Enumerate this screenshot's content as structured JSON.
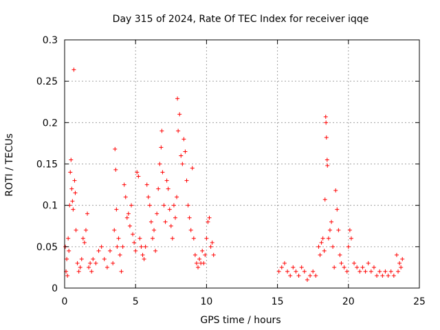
{
  "chart_data": {
    "type": "scatter",
    "title": "Day 315 of 2024, Rate Of TEC Index for receiver iqqe",
    "xlabel": "GPS time / hours",
    "ylabel": "ROTI / TECUs",
    "xlim": [
      0,
      25
    ],
    "ylim": [
      0,
      0.3
    ],
    "xticks": [
      0,
      5,
      10,
      15,
      20,
      25
    ],
    "xtick_labels": [
      "0",
      "5",
      "10",
      "15",
      "20",
      "25"
    ],
    "yticks": [
      0,
      0.05,
      0.1,
      0.15,
      0.2,
      0.25,
      0.3
    ],
    "ytick_labels": [
      "0",
      "0.05",
      "0.1",
      "0.15",
      "0.2",
      "0.25",
      "0.3"
    ],
    "grid": true,
    "marker": "+",
    "series": [
      {
        "name": "ROTI",
        "color": "#ff0000",
        "points": [
          [
            0.05,
            0.05
          ],
          [
            0.1,
            0.02
          ],
          [
            0.15,
            0.035
          ],
          [
            0.2,
            0.015
          ],
          [
            0.25,
            0.06
          ],
          [
            0.3,
            0.045
          ],
          [
            0.35,
            0.1
          ],
          [
            0.4,
            0.14
          ],
          [
            0.45,
            0.155
          ],
          [
            0.5,
            0.12
          ],
          [
            0.55,
            0.105
          ],
          [
            0.6,
            0.095
          ],
          [
            0.65,
            0.264
          ],
          [
            0.7,
            0.13
          ],
          [
            0.75,
            0.115
          ],
          [
            0.8,
            0.07
          ],
          [
            0.9,
            0.03
          ],
          [
            1.0,
            0.02
          ],
          [
            1.1,
            0.025
          ],
          [
            1.2,
            0.035
          ],
          [
            1.3,
            0.06
          ],
          [
            1.4,
            0.055
          ],
          [
            1.5,
            0.07
          ],
          [
            1.6,
            0.09
          ],
          [
            1.7,
            0.025
          ],
          [
            1.8,
            0.03
          ],
          [
            1.9,
            0.02
          ],
          [
            2.0,
            0.035
          ],
          [
            2.2,
            0.03
          ],
          [
            2.4,
            0.045
          ],
          [
            2.6,
            0.05
          ],
          [
            2.8,
            0.035
          ],
          [
            3.0,
            0.025
          ],
          [
            3.2,
            0.045
          ],
          [
            3.4,
            0.03
          ],
          [
            3.5,
            0.07
          ],
          [
            3.55,
            0.168
          ],
          [
            3.6,
            0.143
          ],
          [
            3.65,
            0.095
          ],
          [
            3.7,
            0.05
          ],
          [
            3.8,
            0.06
          ],
          [
            3.9,
            0.04
          ],
          [
            4.0,
            0.02
          ],
          [
            4.1,
            0.05
          ],
          [
            4.2,
            0.125
          ],
          [
            4.3,
            0.11
          ],
          [
            4.4,
            0.085
          ],
          [
            4.5,
            0.09
          ],
          [
            4.6,
            0.075
          ],
          [
            4.7,
            0.1
          ],
          [
            4.8,
            0.065
          ],
          [
            4.9,
            0.055
          ],
          [
            5.0,
            0.045
          ],
          [
            5.1,
            0.14
          ],
          [
            5.2,
            0.135
          ],
          [
            5.3,
            0.06
          ],
          [
            5.4,
            0.05
          ],
          [
            5.5,
            0.04
          ],
          [
            5.6,
            0.035
          ],
          [
            5.7,
            0.05
          ],
          [
            5.8,
            0.125
          ],
          [
            5.9,
            0.11
          ],
          [
            6.0,
            0.1
          ],
          [
            6.1,
            0.08
          ],
          [
            6.2,
            0.06
          ],
          [
            6.3,
            0.07
          ],
          [
            6.4,
            0.045
          ],
          [
            6.5,
            0.09
          ],
          [
            6.6,
            0.12
          ],
          [
            6.7,
            0.15
          ],
          [
            6.8,
            0.17
          ],
          [
            6.85,
            0.19
          ],
          [
            6.9,
            0.14
          ],
          [
            7.0,
            0.1
          ],
          [
            7.1,
            0.08
          ],
          [
            7.2,
            0.13
          ],
          [
            7.3,
            0.12
          ],
          [
            7.4,
            0.095
          ],
          [
            7.5,
            0.075
          ],
          [
            7.6,
            0.06
          ],
          [
            7.7,
            0.1
          ],
          [
            7.8,
            0.085
          ],
          [
            7.9,
            0.11
          ],
          [
            7.95,
            0.229
          ],
          [
            8.0,
            0.19
          ],
          [
            8.1,
            0.21
          ],
          [
            8.2,
            0.16
          ],
          [
            8.3,
            0.15
          ],
          [
            8.4,
            0.18
          ],
          [
            8.5,
            0.165
          ],
          [
            8.6,
            0.13
          ],
          [
            8.7,
            0.1
          ],
          [
            8.8,
            0.085
          ],
          [
            8.9,
            0.07
          ],
          [
            9.0,
            0.145
          ],
          [
            9.1,
            0.06
          ],
          [
            9.2,
            0.04
          ],
          [
            9.3,
            0.03
          ],
          [
            9.4,
            0.025
          ],
          [
            9.5,
            0.035
          ],
          [
            9.6,
            0.03
          ],
          [
            9.7,
            0.045
          ],
          [
            9.8,
            0.03
          ],
          [
            9.9,
            0.04
          ],
          [
            10.0,
            0.06
          ],
          [
            10.1,
            0.08
          ],
          [
            10.2,
            0.085
          ],
          [
            10.3,
            0.05
          ],
          [
            10.4,
            0.055
          ],
          [
            10.5,
            0.04
          ],
          [
            15.1,
            0.02
          ],
          [
            15.3,
            0.025
          ],
          [
            15.5,
            0.03
          ],
          [
            15.7,
            0.02
          ],
          [
            15.9,
            0.015
          ],
          [
            16.1,
            0.025
          ],
          [
            16.3,
            0.02
          ],
          [
            16.5,
            0.015
          ],
          [
            16.7,
            0.025
          ],
          [
            16.9,
            0.02
          ],
          [
            17.1,
            0.01
          ],
          [
            17.3,
            0.015
          ],
          [
            17.5,
            0.02
          ],
          [
            17.7,
            0.015
          ],
          [
            17.9,
            0.05
          ],
          [
            18.0,
            0.04
          ],
          [
            18.1,
            0.055
          ],
          [
            18.2,
            0.06
          ],
          [
            18.3,
            0.045
          ],
          [
            18.35,
            0.107
          ],
          [
            18.4,
            0.207
          ],
          [
            18.42,
            0.2
          ],
          [
            18.45,
            0.182
          ],
          [
            18.5,
            0.155
          ],
          [
            18.52,
            0.148
          ],
          [
            18.6,
            0.06
          ],
          [
            18.7,
            0.07
          ],
          [
            18.8,
            0.08
          ],
          [
            18.9,
            0.05
          ],
          [
            19.0,
            0.025
          ],
          [
            19.1,
            0.118
          ],
          [
            19.2,
            0.095
          ],
          [
            19.3,
            0.07
          ],
          [
            19.4,
            0.04
          ],
          [
            19.5,
            0.03
          ],
          [
            19.7,
            0.025
          ],
          [
            19.9,
            0.02
          ],
          [
            20.0,
            0.05
          ],
          [
            20.1,
            0.07
          ],
          [
            20.2,
            0.06
          ],
          [
            20.4,
            0.03
          ],
          [
            20.6,
            0.025
          ],
          [
            20.8,
            0.02
          ],
          [
            21.0,
            0.025
          ],
          [
            21.2,
            0.02
          ],
          [
            21.4,
            0.03
          ],
          [
            21.6,
            0.02
          ],
          [
            21.8,
            0.025
          ],
          [
            22.0,
            0.015
          ],
          [
            22.2,
            0.02
          ],
          [
            22.4,
            0.015
          ],
          [
            22.6,
            0.02
          ],
          [
            22.8,
            0.015
          ],
          [
            23.0,
            0.02
          ],
          [
            23.2,
            0.015
          ],
          [
            23.4,
            0.04
          ],
          [
            23.5,
            0.02
          ],
          [
            23.6,
            0.03
          ],
          [
            23.7,
            0.025
          ],
          [
            23.8,
            0.035
          ]
        ]
      }
    ]
  }
}
